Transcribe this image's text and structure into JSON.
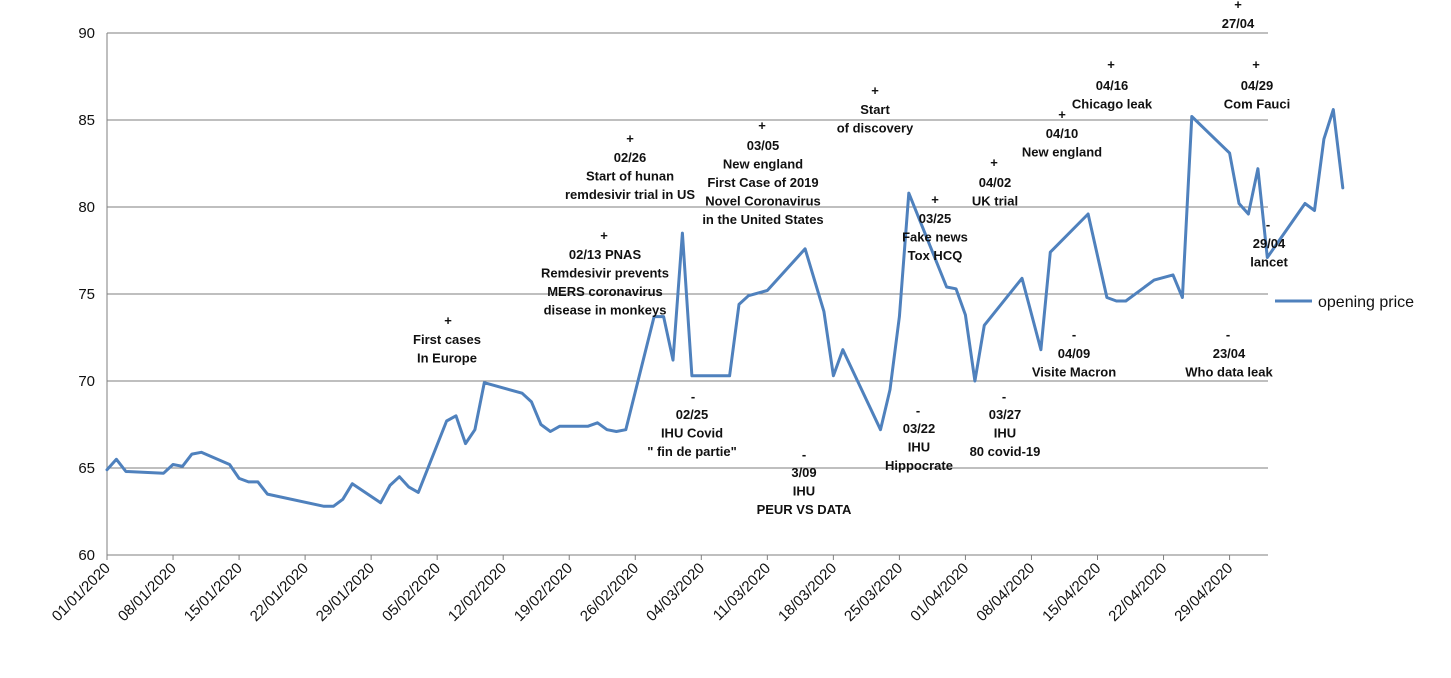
{
  "chart_data": {
    "type": "line",
    "title": "",
    "xlabel": "",
    "ylabel": "",
    "ylim": [
      60,
      90
    ],
    "yticks": [
      60,
      65,
      70,
      75,
      80,
      85,
      90
    ],
    "grid": "horizontal",
    "legend_position": "right",
    "x_tick_labels": [
      "01/01/2020",
      "08/01/2020",
      "15/01/2020",
      "22/01/2020",
      "29/01/2020",
      "05/02/2020",
      "12/02/2020",
      "19/02/2020",
      "26/02/2020",
      "04/03/2020",
      "11/03/2020",
      "18/03/2020",
      "25/03/2020",
      "01/04/2020",
      "08/04/2020",
      "15/04/2020",
      "22/04/2020",
      "29/04/2020"
    ],
    "series": [
      {
        "name": "opening price",
        "color": "#4f81bd",
        "points": [
          [
            "01/01/2020",
            64.9
          ],
          [
            "02/01/2020",
            65.5
          ],
          [
            "03/01/2020",
            64.8
          ],
          [
            "07/01/2020",
            64.7
          ],
          [
            "08/01/2020",
            65.2
          ],
          [
            "09/01/2020",
            65.1
          ],
          [
            "10/01/2020",
            65.8
          ],
          [
            "11/01/2020",
            65.9
          ],
          [
            "14/01/2020",
            65.2
          ],
          [
            "15/01/2020",
            64.4
          ],
          [
            "16/01/2020",
            64.2
          ],
          [
            "17/01/2020",
            64.2
          ],
          [
            "18/01/2020",
            63.5
          ],
          [
            "24/01/2020",
            62.8
          ],
          [
            "25/01/2020",
            62.8
          ],
          [
            "26/01/2020",
            63.2
          ],
          [
            "27/01/2020",
            64.1
          ],
          [
            "30/01/2020",
            63.0
          ],
          [
            "31/01/2020",
            64.0
          ],
          [
            "01/02/2020",
            64.5
          ],
          [
            "02/02/2020",
            63.9
          ],
          [
            "03/02/2020",
            63.6
          ],
          [
            "06/02/2020",
            67.7
          ],
          [
            "07/02/2020",
            68.0
          ],
          [
            "08/02/2020",
            66.4
          ],
          [
            "09/02/2020",
            67.2
          ],
          [
            "10/02/2020",
            69.9
          ],
          [
            "14/02/2020",
            69.3
          ],
          [
            "15/02/2020",
            68.8
          ],
          [
            "16/02/2020",
            67.5
          ],
          [
            "17/02/2020",
            67.1
          ],
          [
            "18/02/2020",
            67.4
          ],
          [
            "21/02/2020",
            67.4
          ],
          [
            "22/02/2020",
            67.6
          ],
          [
            "23/02/2020",
            67.2
          ],
          [
            "24/02/2020",
            67.1
          ],
          [
            "25/02/2020",
            67.2
          ],
          [
            "28/02/2020",
            73.7
          ],
          [
            "29/02/2020",
            73.7
          ],
          [
            "01/03/2020",
            71.2
          ],
          [
            "02/03/2020",
            78.5
          ],
          [
            "03/03/2020",
            70.3
          ],
          [
            "07/03/2020",
            70.3
          ],
          [
            "08/03/2020",
            74.4
          ],
          [
            "09/03/2020",
            74.9
          ],
          [
            "11/03/2020",
            75.2
          ],
          [
            "15/03/2020",
            77.6
          ],
          [
            "17/03/2020",
            74.0
          ],
          [
            "18/03/2020",
            70.3
          ],
          [
            "19/03/2020",
            71.8
          ],
          [
            "23/03/2020",
            67.2
          ],
          [
            "24/03/2020",
            69.5
          ],
          [
            "25/03/2020",
            73.7
          ],
          [
            "26/03/2020",
            80.8
          ],
          [
            "30/03/2020",
            75.4
          ],
          [
            "31/03/2020",
            75.3
          ],
          [
            "01/04/2020",
            73.8
          ],
          [
            "02/04/2020",
            70.0
          ],
          [
            "03/04/2020",
            73.2
          ],
          [
            "07/04/2020",
            75.9
          ],
          [
            "09/04/2020",
            71.8
          ],
          [
            "10/04/2020",
            77.4
          ],
          [
            "14/04/2020",
            79.6
          ],
          [
            "16/04/2020",
            74.8
          ],
          [
            "17/04/2020",
            74.6
          ],
          [
            "18/04/2020",
            74.6
          ],
          [
            "21/04/2020",
            75.8
          ],
          [
            "23/04/2020",
            76.1
          ],
          [
            "24/04/2020",
            74.8
          ],
          [
            "25/04/2020",
            85.2
          ],
          [
            "29/04/2020",
            83.1
          ],
          [
            "30/04/2020",
            80.2
          ],
          [
            "01/05/2020",
            79.6
          ],
          [
            "02/05/2020",
            82.2
          ],
          [
            "03/05/2020",
            77.1
          ],
          [
            "07/05/2020",
            80.2
          ],
          [
            "08/05/2020",
            79.8
          ],
          [
            "09/05/2020",
            83.9
          ],
          [
            "10/05/2020",
            85.6
          ],
          [
            "11/05/2020",
            81.1
          ]
        ]
      }
    ],
    "annotations": [
      {
        "marker": "+",
        "lines": [
          "First cases",
          "In Europe"
        ],
        "anchor": "above"
      },
      {
        "marker": "+",
        "lines": [
          "02/13 PNAS",
          "Remdesivir prevents",
          "MERS coronavirus",
          "disease in monkeys"
        ],
        "anchor": "above"
      },
      {
        "marker": "+",
        "lines": [
          "02/26",
          "Start of hunan",
          "remdesivir trial in US"
        ],
        "anchor": "above"
      },
      {
        "marker": "-",
        "lines": [
          "02/25",
          "IHU Covid",
          "\" fin de partie\""
        ],
        "anchor": "below"
      },
      {
        "marker": "+",
        "lines": [
          "03/05",
          "New england",
          "First Case of 2019",
          "Novel Coronavirus",
          "in the United States"
        ],
        "anchor": "above"
      },
      {
        "marker": "-",
        "lines": [
          "3/09",
          "IHU",
          "PEUR VS DATA"
        ],
        "anchor": "below"
      },
      {
        "marker": "+",
        "lines": [
          "Start",
          "of discovery"
        ],
        "anchor": "above"
      },
      {
        "marker": "+",
        "lines": [
          "03/25",
          "Fake news",
          "Tox HCQ"
        ],
        "anchor": "above"
      },
      {
        "marker": "-",
        "lines": [
          "03/22",
          "IHU",
          "Hippocrate"
        ],
        "anchor": "below"
      },
      {
        "marker": "+",
        "lines": [
          "04/02",
          "UK trial"
        ],
        "anchor": "above"
      },
      {
        "marker": "-",
        "lines": [
          "03/27",
          "IHU",
          "80 covid-19"
        ],
        "anchor": "below"
      },
      {
        "marker": "+",
        "lines": [
          "04/10",
          "New england"
        ],
        "anchor": "above"
      },
      {
        "marker": "-",
        "lines": [
          "04/09",
          "Visite Macron"
        ],
        "anchor": "below"
      },
      {
        "marker": "+",
        "lines": [
          "04/16",
          "Chicago leak"
        ],
        "anchor": "above"
      },
      {
        "marker": "+",
        "lines": [
          "27/04"
        ],
        "anchor": "above"
      },
      {
        "marker": "+",
        "lines": [
          "04/29",
          "Com Fauci"
        ],
        "anchor": "above"
      },
      {
        "marker": "-",
        "lines": [
          "29/04",
          "lancet"
        ],
        "anchor": "below"
      },
      {
        "marker": "-",
        "lines": [
          "23/04",
          "Who data leak"
        ],
        "anchor": "below"
      }
    ]
  }
}
